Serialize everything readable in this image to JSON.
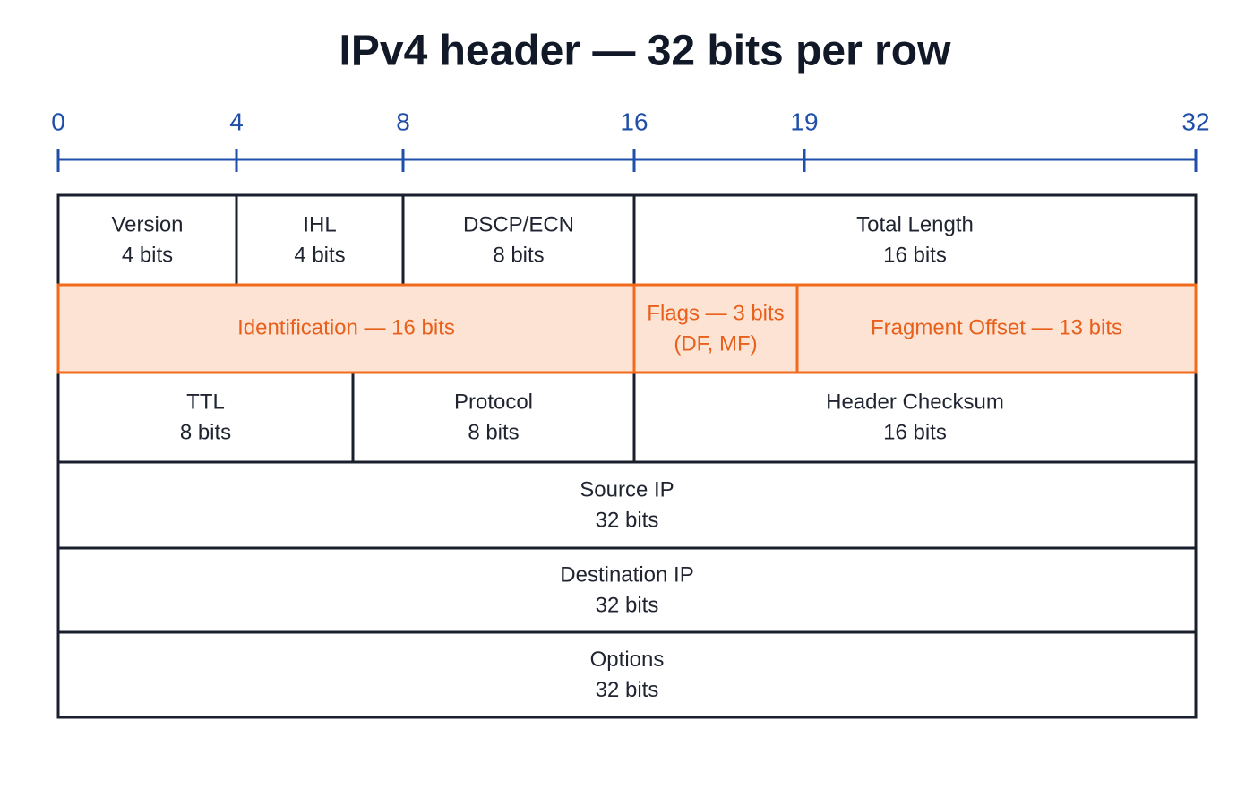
{
  "title": "IPv4 header — 32 bits per row",
  "ruler": {
    "ticks": [
      0,
      4,
      8,
      16,
      19,
      32
    ]
  },
  "rows": [
    [
      {
        "lines": [
          "Version",
          "4 bits"
        ]
      },
      {
        "lines": [
          "IHL",
          "4 bits"
        ]
      },
      {
        "lines": [
          "DSCP/ECN",
          "8 bits"
        ]
      },
      {
        "lines": [
          "Total Length",
          "16 bits"
        ]
      }
    ],
    [
      {
        "lines": [
          "Identification — 16 bits"
        ]
      },
      {
        "lines": [
          "Flags — 3 bits",
          "(DF, MF)"
        ]
      },
      {
        "lines": [
          "Fragment Offset — 13 bits"
        ]
      }
    ],
    [
      {
        "lines": [
          "TTL",
          "8 bits"
        ]
      },
      {
        "lines": [
          "Protocol",
          "8 bits"
        ]
      },
      {
        "lines": [
          "Header Checksum",
          "16 bits"
        ]
      }
    ],
    [
      {
        "lines": [
          "Source IP",
          "32 bits"
        ]
      }
    ],
    [
      {
        "lines": [
          "Destination IP",
          "32 bits"
        ]
      }
    ],
    [
      {
        "lines": [
          "Options",
          "32 bits"
        ]
      }
    ]
  ]
}
